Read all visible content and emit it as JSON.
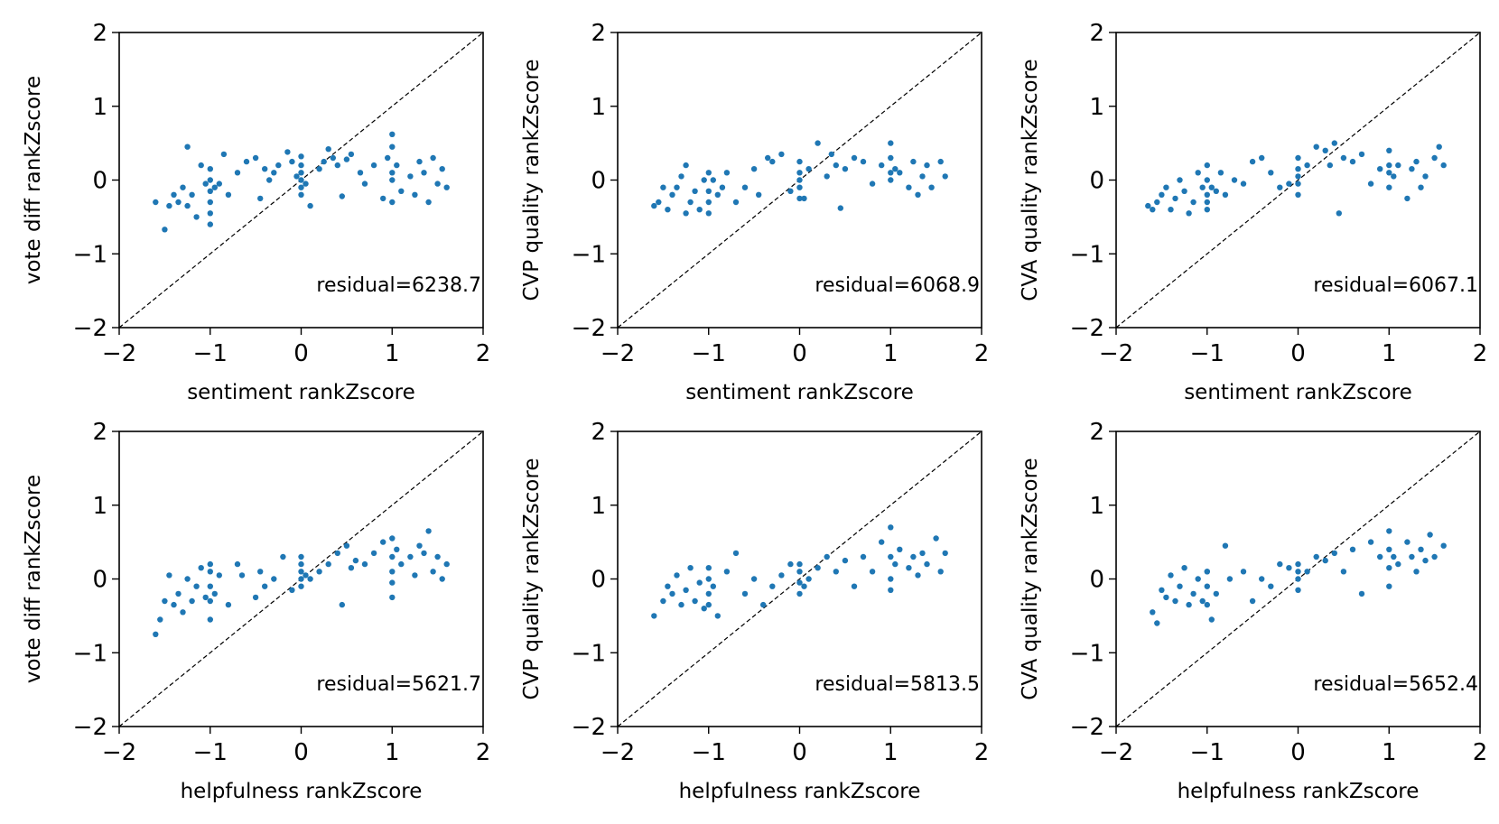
{
  "chart_data": [
    {
      "type": "scatter",
      "xlabel": "sentiment rankZscore",
      "ylabel": "vote diff rankZscore",
      "annotation": "residual=6238.7",
      "xlim": [
        -2,
        2
      ],
      "ylim": [
        -2,
        2
      ],
      "xticks": [
        "−2",
        "−1",
        "0",
        "1",
        "2"
      ],
      "yticks": [
        "−2",
        "−1",
        "0",
        "1",
        "2"
      ],
      "reference_line": "y = x (dashed)",
      "x": [
        -1.6,
        -1.5,
        -1.45,
        -1.4,
        -1.35,
        -1.3,
        -1.25,
        -1.25,
        -1.2,
        -1.15,
        -1.1,
        -1.05,
        -1.0,
        -1.0,
        -1.0,
        -1.0,
        -1.0,
        -1.0,
        -0.95,
        -0.9,
        -0.85,
        -0.8,
        -0.7,
        -0.6,
        -0.5,
        -0.45,
        -0.4,
        -0.35,
        -0.3,
        -0.25,
        -0.15,
        -0.1,
        -0.05,
        0.0,
        0.0,
        0.0,
        0.0,
        0.0,
        0.0,
        0.05,
        0.1,
        0.2,
        0.25,
        0.3,
        0.35,
        0.4,
        0.45,
        0.5,
        0.55,
        0.65,
        0.7,
        0.8,
        0.9,
        0.95,
        1.0,
        1.0,
        1.0,
        1.0,
        1.0,
        1.05,
        1.1,
        1.2,
        1.25,
        1.3,
        1.35,
        1.4,
        1.45,
        1.5,
        1.55,
        1.6
      ],
      "y": [
        -0.3,
        -0.67,
        -0.35,
        -0.2,
        -0.3,
        -0.1,
        0.45,
        -0.35,
        -0.2,
        -0.5,
        0.2,
        -0.05,
        -0.6,
        -0.45,
        -0.3,
        -0.15,
        0.0,
        0.15,
        -0.1,
        -0.05,
        0.35,
        -0.2,
        0.1,
        0.25,
        0.3,
        -0.25,
        0.15,
        0.0,
        0.1,
        0.2,
        0.38,
        0.25,
        0.05,
        -0.2,
        -0.1,
        0.0,
        0.1,
        0.2,
        0.32,
        -0.05,
        -0.35,
        0.15,
        0.25,
        0.42,
        0.3,
        0.2,
        -0.22,
        0.28,
        0.35,
        0.1,
        -0.05,
        0.2,
        -0.25,
        0.3,
        0.62,
        0.45,
        0.1,
        0.0,
        -0.3,
        0.2,
        -0.15,
        0.05,
        -0.2,
        0.25,
        0.1,
        -0.3,
        0.3,
        -0.05,
        0.15,
        -0.1
      ]
    },
    {
      "type": "scatter",
      "xlabel": "sentiment rankZscore",
      "ylabel": "CVP quality rankZscore",
      "annotation": "residual=6068.9",
      "xlim": [
        -2,
        2
      ],
      "ylim": [
        -2,
        2
      ],
      "xticks": [
        "−2",
        "−1",
        "0",
        "1",
        "2"
      ],
      "yticks": [
        "−2",
        "−1",
        "0",
        "1",
        "2"
      ],
      "reference_line": "y = x (dashed)",
      "x": [
        -1.6,
        -1.55,
        -1.5,
        -1.45,
        -1.4,
        -1.35,
        -1.3,
        -1.25,
        -1.25,
        -1.2,
        -1.15,
        -1.1,
        -1.05,
        -1.0,
        -1.0,
        -1.0,
        -1.0,
        -0.95,
        -0.9,
        -0.85,
        -0.8,
        -0.7,
        -0.6,
        -0.5,
        -0.45,
        -0.35,
        -0.3,
        -0.2,
        -0.1,
        0.0,
        0.0,
        0.0,
        0.0,
        0.0,
        0.05,
        0.1,
        0.2,
        0.3,
        0.35,
        0.4,
        0.45,
        0.5,
        0.6,
        0.7,
        0.8,
        0.9,
        1.0,
        1.0,
        1.0,
        1.0,
        1.05,
        1.1,
        1.2,
        1.25,
        1.3,
        1.35,
        1.4,
        1.45,
        1.55,
        1.6
      ],
      "y": [
        -0.35,
        -0.3,
        -0.1,
        -0.4,
        -0.2,
        -0.1,
        0.05,
        -0.45,
        0.2,
        -0.3,
        -0.15,
        -0.4,
        0.0,
        -0.3,
        -0.15,
        0.1,
        -0.45,
        0.0,
        -0.2,
        -0.1,
        0.1,
        -0.3,
        -0.1,
        0.15,
        -0.2,
        0.3,
        0.25,
        0.35,
        -0.15,
        -0.25,
        -0.1,
        0.0,
        0.1,
        0.25,
        -0.25,
        0.15,
        0.5,
        0.05,
        0.35,
        0.2,
        -0.38,
        0.15,
        0.3,
        0.25,
        -0.05,
        0.2,
        0.5,
        0.3,
        0.1,
        0.0,
        0.15,
        0.1,
        -0.1,
        0.25,
        -0.2,
        0.05,
        0.2,
        -0.1,
        0.25,
        0.05
      ]
    },
    {
      "type": "scatter",
      "xlabel": "sentiment rankZscore",
      "ylabel": "CVA quality rankZscore",
      "annotation": "residual=6067.1",
      "xlim": [
        -2,
        2
      ],
      "ylim": [
        -2,
        2
      ],
      "xticks": [
        "−2",
        "−1",
        "0",
        "1",
        "2"
      ],
      "yticks": [
        "−2",
        "−1",
        "0",
        "1",
        "2"
      ],
      "reference_line": "y = x (dashed)",
      "x": [
        -1.65,
        -1.6,
        -1.55,
        -1.5,
        -1.45,
        -1.4,
        -1.35,
        -1.3,
        -1.25,
        -1.2,
        -1.15,
        -1.1,
        -1.05,
        -1.0,
        -1.0,
        -1.0,
        -1.0,
        -1.0,
        -0.95,
        -0.9,
        -0.85,
        -0.8,
        -0.7,
        -0.6,
        -0.5,
        -0.4,
        -0.3,
        -0.2,
        -0.1,
        0.0,
        0.0,
        0.0,
        0.0,
        0.0,
        0.1,
        0.2,
        0.3,
        0.35,
        0.4,
        0.45,
        0.5,
        0.6,
        0.7,
        0.8,
        0.9,
        1.0,
        1.0,
        1.0,
        1.0,
        1.05,
        1.1,
        1.2,
        1.25,
        1.3,
        1.35,
        1.4,
        1.5,
        1.55,
        1.6
      ],
      "y": [
        -0.35,
        -0.4,
        -0.3,
        -0.2,
        -0.1,
        -0.4,
        -0.25,
        0.0,
        -0.15,
        -0.45,
        -0.3,
        0.1,
        -0.1,
        -0.4,
        -0.2,
        0.0,
        0.2,
        -0.3,
        -0.1,
        -0.15,
        0.1,
        -0.2,
        0.0,
        -0.05,
        0.25,
        0.3,
        0.1,
        -0.1,
        -0.05,
        -0.2,
        -0.05,
        0.05,
        0.15,
        0.3,
        0.2,
        0.45,
        0.4,
        0.2,
        0.5,
        -0.45,
        0.3,
        0.25,
        0.35,
        -0.05,
        0.15,
        0.4,
        0.2,
        0.1,
        -0.1,
        0.05,
        0.2,
        -0.25,
        0.15,
        0.25,
        -0.1,
        0.05,
        0.3,
        0.45,
        0.2
      ]
    },
    {
      "type": "scatter",
      "xlabel": "helpfulness rankZscore",
      "ylabel": "vote diff rankZscore",
      "annotation": "residual=5621.7",
      "xlim": [
        -2,
        2
      ],
      "ylim": [
        -2,
        2
      ],
      "xticks": [
        "−2",
        "−1",
        "0",
        "1",
        "2"
      ],
      "yticks": [
        "−2",
        "−1",
        "0",
        "1",
        "2"
      ],
      "reference_line": "y = x (dashed)",
      "x": [
        -1.6,
        -1.55,
        -1.5,
        -1.45,
        -1.4,
        -1.35,
        -1.3,
        -1.25,
        -1.2,
        -1.15,
        -1.1,
        -1.05,
        -1.0,
        -1.0,
        -1.0,
        -1.0,
        -1.0,
        -0.95,
        -0.9,
        -0.8,
        -0.7,
        -0.65,
        -0.5,
        -0.45,
        -0.4,
        -0.3,
        -0.2,
        -0.1,
        0.0,
        0.0,
        0.0,
        0.0,
        0.0,
        0.05,
        0.1,
        0.2,
        0.3,
        0.4,
        0.45,
        0.5,
        0.55,
        0.6,
        0.7,
        0.8,
        0.9,
        1.0,
        1.0,
        1.0,
        1.0,
        1.0,
        1.05,
        1.1,
        1.2,
        1.25,
        1.3,
        1.35,
        1.4,
        1.45,
        1.5,
        1.55,
        1.6
      ],
      "y": [
        -0.75,
        -0.55,
        -0.3,
        0.05,
        -0.35,
        -0.2,
        -0.45,
        0.0,
        -0.3,
        -0.1,
        0.15,
        -0.25,
        -0.55,
        -0.3,
        -0.1,
        0.1,
        0.2,
        -0.2,
        0.05,
        -0.35,
        0.2,
        0.05,
        -0.25,
        0.1,
        -0.1,
        0.0,
        0.3,
        -0.15,
        -0.1,
        0.0,
        0.1,
        0.2,
        0.3,
        0.05,
        0.0,
        0.1,
        0.2,
        0.35,
        -0.35,
        0.45,
        0.15,
        0.25,
        0.2,
        0.35,
        0.5,
        0.55,
        0.3,
        0.1,
        -0.05,
        -0.25,
        0.4,
        0.2,
        0.3,
        0.05,
        0.45,
        0.35,
        0.65,
        0.1,
        0.3,
        0.0,
        0.2
      ]
    },
    {
      "type": "scatter",
      "xlabel": "helpfulness rankZscore",
      "ylabel": "CVP quality rankZscore",
      "annotation": "residual=5813.5",
      "xlim": [
        -2,
        2
      ],
      "ylim": [
        -2,
        2
      ],
      "xticks": [
        "−2",
        "−1",
        "0",
        "1",
        "2"
      ],
      "yticks": [
        "−2",
        "−1",
        "0",
        "1",
        "2"
      ],
      "reference_line": "y = x (dashed)",
      "x": [
        -1.6,
        -1.5,
        -1.45,
        -1.4,
        -1.35,
        -1.3,
        -1.25,
        -1.2,
        -1.15,
        -1.1,
        -1.05,
        -1.0,
        -1.0,
        -1.0,
        -1.0,
        -0.95,
        -0.9,
        -0.8,
        -0.7,
        -0.6,
        -0.5,
        -0.4,
        -0.3,
        -0.2,
        -0.1,
        0.0,
        0.0,
        0.0,
        0.0,
        0.05,
        0.1,
        0.2,
        0.3,
        0.4,
        0.5,
        0.6,
        0.7,
        0.8,
        0.9,
        1.0,
        1.0,
        1.0,
        1.0,
        1.05,
        1.1,
        1.2,
        1.25,
        1.3,
        1.35,
        1.4,
        1.5,
        1.55,
        1.6
      ],
      "y": [
        -0.5,
        -0.3,
        -0.1,
        -0.2,
        0.05,
        -0.35,
        -0.15,
        0.15,
        -0.3,
        -0.05,
        -0.4,
        -0.2,
        0.0,
        0.15,
        -0.35,
        -0.1,
        -0.5,
        0.1,
        0.35,
        -0.2,
        0.0,
        -0.35,
        -0.1,
        0.05,
        0.2,
        -0.2,
        -0.05,
        0.1,
        0.2,
        -0.1,
        0.0,
        0.15,
        0.3,
        0.1,
        0.25,
        -0.1,
        0.3,
        0.1,
        0.5,
        0.7,
        0.3,
        0.0,
        -0.15,
        0.2,
        0.4,
        0.15,
        0.3,
        0.05,
        0.35,
        0.2,
        0.55,
        0.1,
        0.35
      ]
    },
    {
      "type": "scatter",
      "xlabel": "helpfulness rankZscore",
      "ylabel": "CVA quality rankZscore",
      "annotation": "residual=5652.4",
      "xlim": [
        -2,
        2
      ],
      "ylim": [
        -2,
        2
      ],
      "xticks": [
        "−2",
        "−1",
        "0",
        "1",
        "2"
      ],
      "yticks": [
        "−2",
        "−1",
        "0",
        "1",
        "2"
      ],
      "reference_line": "y = x (dashed)",
      "x": [
        -1.6,
        -1.55,
        -1.5,
        -1.45,
        -1.4,
        -1.35,
        -1.3,
        -1.25,
        -1.2,
        -1.15,
        -1.1,
        -1.05,
        -1.0,
        -1.0,
        -1.0,
        -1.0,
        -0.95,
        -0.9,
        -0.8,
        -0.75,
        -0.6,
        -0.5,
        -0.4,
        -0.3,
        -0.2,
        -0.1,
        0.0,
        0.0,
        0.0,
        0.0,
        0.1,
        0.2,
        0.3,
        0.4,
        0.5,
        0.6,
        0.7,
        0.8,
        0.9,
        1.0,
        1.0,
        1.0,
        1.0,
        1.05,
        1.1,
        1.2,
        1.25,
        1.3,
        1.35,
        1.4,
        1.45,
        1.5,
        1.6
      ],
      "y": [
        -0.45,
        -0.6,
        -0.15,
        -0.25,
        0.05,
        -0.3,
        -0.1,
        0.15,
        -0.35,
        -0.2,
        0.0,
        -0.3,
        -0.1,
        0.1,
        -0.35,
        0.1,
        -0.55,
        -0.2,
        0.45,
        0.0,
        0.1,
        -0.3,
        0.0,
        -0.1,
        0.2,
        0.15,
        -0.15,
        0.0,
        0.1,
        0.2,
        0.1,
        0.3,
        0.25,
        0.35,
        0.1,
        0.4,
        -0.2,
        0.5,
        0.3,
        0.65,
        0.4,
        0.15,
        -0.1,
        0.3,
        0.2,
        0.5,
        0.3,
        0.1,
        0.4,
        0.25,
        0.6,
        0.3,
        0.45
      ]
    }
  ]
}
